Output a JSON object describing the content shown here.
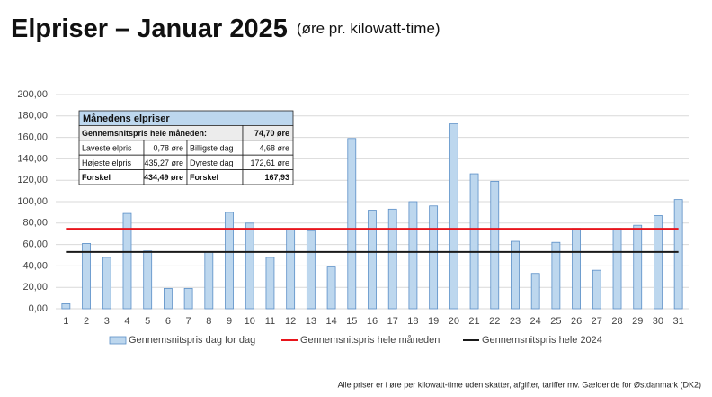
{
  "chart_data": {
    "type": "bar",
    "title": "Elpriser – Januar 2025",
    "subtitle": "(øre pr. kilowatt-time)",
    "categories": [
      "1",
      "2",
      "3",
      "4",
      "5",
      "6",
      "7",
      "8",
      "9",
      "10",
      "11",
      "12",
      "13",
      "14",
      "15",
      "16",
      "17",
      "18",
      "19",
      "20",
      "21",
      "22",
      "23",
      "24",
      "25",
      "26",
      "27",
      "28",
      "29",
      "30",
      "31"
    ],
    "series": [
      {
        "name": "Gennemsnitspris dag for dag",
        "color": "#bdd7ee",
        "type": "bar",
        "values": [
          4.68,
          61,
          48,
          89,
          54,
          19,
          19,
          53,
          90,
          80,
          48,
          74,
          73,
          39,
          159,
          92,
          93,
          100,
          96,
          172.61,
          126,
          119,
          63,
          33,
          62,
          75,
          36,
          75,
          78,
          87,
          102
        ]
      },
      {
        "name": "Gennemsnitspris hele måneden",
        "color": "#e8141b",
        "type": "line",
        "value": 74.7
      },
      {
        "name": "Gennemsnitspris hele 2024",
        "color": "#1a1a1a",
        "type": "line",
        "value": 53
      }
    ],
    "ylim": [
      0,
      200
    ],
    "yticks": [
      {
        "value": 0,
        "label": "0,00"
      },
      {
        "value": 20,
        "label": "20,00"
      },
      {
        "value": 40,
        "label": "40,00"
      },
      {
        "value": 60,
        "label": "60,00"
      },
      {
        "value": 80,
        "label": "80,00"
      },
      {
        "value": 100,
        "label": "100,00"
      },
      {
        "value": 120,
        "label": "120,00"
      },
      {
        "value": 140,
        "label": "140,00"
      },
      {
        "value": 160,
        "label": "160,00"
      },
      {
        "value": 180,
        "label": "180,00"
      },
      {
        "value": 200,
        "label": "200,00"
      }
    ],
    "grid": true,
    "table": {
      "title": "Månedens elpriser",
      "rows": [
        [
          "Gennemsnitspris hele måneden:",
          "74,70 øre"
        ],
        [
          "Laveste elpris",
          "0,78 øre",
          "Billigste dag",
          "4,68 øre"
        ],
        [
          "Højeste elpris",
          "435,27 øre",
          "Dyreste dag",
          "172,61 øre"
        ],
        [
          "Forskel",
          "434,49 øre",
          "Forskel",
          "167,93"
        ]
      ]
    },
    "footnote": "Alle priser er i øre per kilowatt-time uden skatter, afgifter, tariffer mv. Gældende for Østdanmark (DK2)"
  }
}
